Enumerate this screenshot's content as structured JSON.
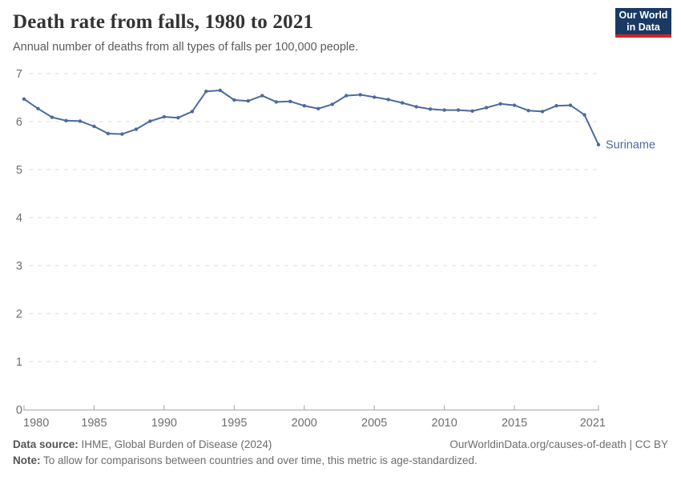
{
  "header": {
    "title": "Death rate from falls, 1980 to 2021",
    "subtitle": "Annual number of deaths from all types of falls per 100,000 people.",
    "logo": {
      "line1": "Our World",
      "line2": "in Data",
      "bg_color": "#1a3a63",
      "accent_color": "#cf2722"
    }
  },
  "chart_data": {
    "type": "line",
    "title": "Death rate from falls, 1980 to 2021",
    "subtitle": "Annual number of deaths from all types of falls per 100,000 people.",
    "entity": "Suriname",
    "unit": "deaths per 100,000 people",
    "xlabel": "",
    "ylabel": "",
    "xlim": [
      1980,
      2021
    ],
    "ylim": [
      0,
      7
    ],
    "grid": "horizontal-dashed",
    "legend_position": "end-of-line-label",
    "x_ticks": [
      1980,
      1985,
      1990,
      1995,
      2000,
      2005,
      2010,
      2015,
      2021
    ],
    "x_tick_labels": [
      "1980",
      "1985",
      "1990",
      "1995",
      "2000",
      "2005",
      "2010",
      "2015",
      "2021"
    ],
    "y_ticks": [
      0,
      1,
      2,
      3,
      4,
      5,
      6,
      7
    ],
    "x": [
      1980,
      1981,
      1982,
      1983,
      1984,
      1985,
      1986,
      1987,
      1988,
      1989,
      1990,
      1991,
      1992,
      1993,
      1994,
      1995,
      1996,
      1997,
      1998,
      1999,
      2000,
      2001,
      2002,
      2003,
      2004,
      2005,
      2006,
      2007,
      2008,
      2009,
      2010,
      2011,
      2012,
      2013,
      2014,
      2015,
      2016,
      2017,
      2018,
      2019,
      2020,
      2021
    ],
    "values": [
      6.47,
      6.27,
      6.09,
      6.02,
      6.01,
      5.9,
      5.75,
      5.74,
      5.84,
      6.01,
      6.1,
      6.08,
      6.21,
      6.63,
      6.65,
      6.45,
      6.43,
      6.54,
      6.41,
      6.42,
      6.33,
      6.27,
      6.36,
      6.54,
      6.56,
      6.51,
      6.46,
      6.39,
      6.31,
      6.26,
      6.24,
      6.24,
      6.22,
      6.29,
      6.37,
      6.34,
      6.23,
      6.21,
      6.33,
      6.34,
      6.14,
      5.52
    ],
    "line_color": "#4c6a9c",
    "grid_color": "#dcdcdc",
    "axis_color": "#a5a5a5",
    "label_color": "#6e6e6e"
  },
  "footer": {
    "source_label": "Data source:",
    "source_text": " IHME, Global Burden of Disease (2024)",
    "attribution": "OurWorldinData.org/causes-of-death | CC BY",
    "note_label": "Note:",
    "note_text": " To allow for comparisons between countries and over time, this metric is age-standardized."
  }
}
